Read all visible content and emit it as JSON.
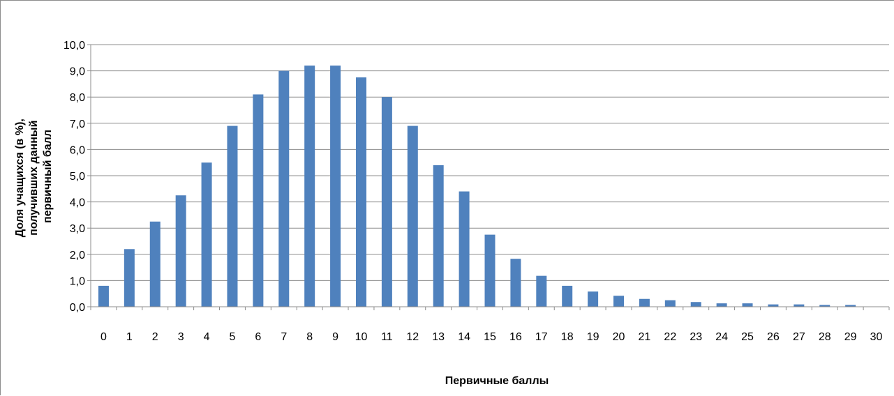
{
  "colors": {
    "bar": "#4f81bd",
    "grid": "#8c8c8c",
    "axis": "#8c8c8c",
    "frame": "#8c8c8c"
  },
  "chart_data": {
    "type": "bar",
    "title": "",
    "xlabel": "Первичные баллы",
    "ylabel": [
      "Доля учащихся (в %),",
      "получивших данный",
      "первичный балл"
    ],
    "ylim": [
      0,
      10
    ],
    "ytick_labels": [
      "0,0",
      "1,0",
      "2,0",
      "3,0",
      "4,0",
      "5,0",
      "6,0",
      "7,0",
      "8,0",
      "9,0",
      "10,0"
    ],
    "grid": true,
    "legend": "none",
    "categories": [
      "0",
      "1",
      "2",
      "3",
      "4",
      "5",
      "6",
      "7",
      "8",
      "9",
      "10",
      "11",
      "12",
      "13",
      "14",
      "15",
      "16",
      "17",
      "18",
      "19",
      "20",
      "21",
      "22",
      "23",
      "24",
      "25",
      "26",
      "27",
      "28",
      "29",
      "30"
    ],
    "values": [
      0.8,
      2.2,
      3.25,
      4.25,
      5.5,
      6.9,
      8.1,
      9.0,
      9.2,
      9.2,
      8.75,
      8.0,
      6.9,
      5.4,
      4.4,
      2.75,
      1.83,
      1.18,
      0.8,
      0.58,
      0.42,
      0.3,
      0.25,
      0.18,
      0.13,
      0.13,
      0.09,
      0.09,
      0.07,
      0.07,
      0.0
    ]
  }
}
